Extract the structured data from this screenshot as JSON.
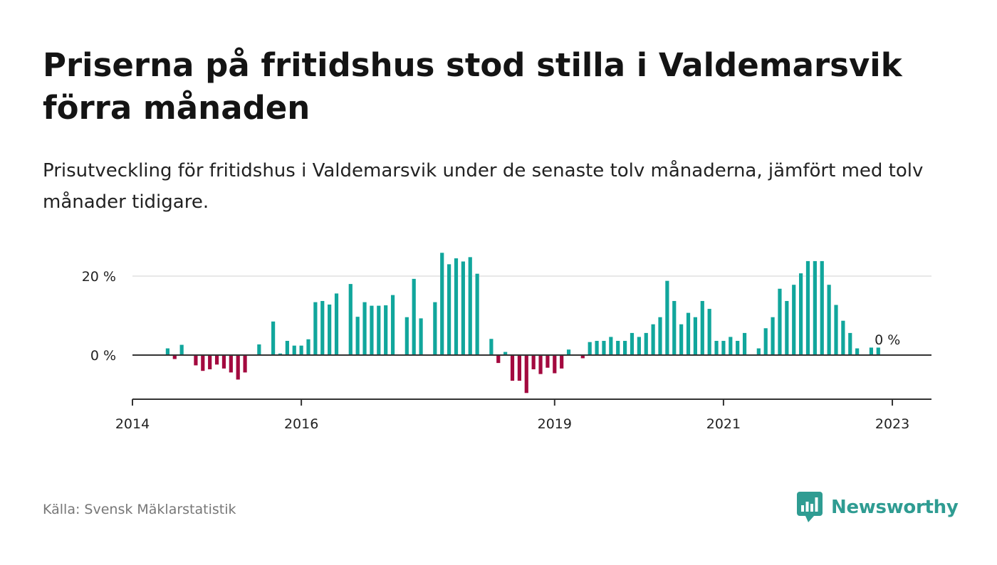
{
  "header": {
    "title": "Priserna på fritidshus stod stilla i Valdemarsvik förra månaden",
    "subtitle": "Prisutveckling för fritidshus i Valdemarsvik under de senaste tolv månaderna, jämfört med tolv månader tidigare."
  },
  "footer": {
    "source": "Källa: Svensk Mäklarstatistik",
    "brand": "Newsworthy"
  },
  "colors": {
    "positive": "#11a69c",
    "negative": "#a3093f",
    "brand": "#2f9c92"
  },
  "chart_data": {
    "type": "bar",
    "unit": "%",
    "ylim": [
      -11.5,
      28
    ],
    "y_ticks": [
      {
        "value": 0,
        "label": "0 %"
      },
      {
        "value": 20,
        "label": "20 %"
      }
    ],
    "grid": true,
    "x_ticks": [
      {
        "value": "2014-01",
        "label": "2014"
      },
      {
        "value": "2016-01",
        "label": "2016"
      },
      {
        "value": "2019-01",
        "label": "2019"
      },
      {
        "value": "2021-01",
        "label": "2021"
      },
      {
        "value": "2023-01",
        "label": "2023"
      }
    ],
    "x_range": [
      "2014-01",
      "2023-06"
    ],
    "last_label": "0 %",
    "series": [
      {
        "points": [
          {
            "x": "2014-06",
            "y": 1.7
          },
          {
            "x": "2014-07",
            "y": -1.0
          },
          {
            "x": "2014-08",
            "y": 2.6
          },
          {
            "x": "2014-10",
            "y": -2.6
          },
          {
            "x": "2014-11",
            "y": -4.0
          },
          {
            "x": "2014-12",
            "y": -3.6
          },
          {
            "x": "2015-01",
            "y": -2.4
          },
          {
            "x": "2015-02",
            "y": -3.4
          },
          {
            "x": "2015-03",
            "y": -4.4
          },
          {
            "x": "2015-04",
            "y": -6.2
          },
          {
            "x": "2015-05",
            "y": -4.4
          },
          {
            "x": "2015-07",
            "y": 2.7
          },
          {
            "x": "2015-09",
            "y": 8.5
          },
          {
            "x": "2015-10",
            "y": 0.4
          },
          {
            "x": "2015-11",
            "y": 3.6
          },
          {
            "x": "2015-12",
            "y": 2.4
          },
          {
            "x": "2016-01",
            "y": 2.4
          },
          {
            "x": "2016-02",
            "y": 4.0
          },
          {
            "x": "2016-03",
            "y": 13.4
          },
          {
            "x": "2016-04",
            "y": 13.7
          },
          {
            "x": "2016-05",
            "y": 12.8
          },
          {
            "x": "2016-06",
            "y": 15.6
          },
          {
            "x": "2016-08",
            "y": 18.0
          },
          {
            "x": "2016-09",
            "y": 9.7
          },
          {
            "x": "2016-10",
            "y": 13.4
          },
          {
            "x": "2016-11",
            "y": 12.5
          },
          {
            "x": "2016-12",
            "y": 12.5
          },
          {
            "x": "2017-01",
            "y": 12.6
          },
          {
            "x": "2017-02",
            "y": 15.2
          },
          {
            "x": "2017-04",
            "y": 9.6
          },
          {
            "x": "2017-05",
            "y": 19.3
          },
          {
            "x": "2017-06",
            "y": 9.3
          },
          {
            "x": "2017-08",
            "y": 13.4
          },
          {
            "x": "2017-09",
            "y": 25.9
          },
          {
            "x": "2017-10",
            "y": 23.0
          },
          {
            "x": "2017-11",
            "y": 24.5
          },
          {
            "x": "2017-12",
            "y": 23.7
          },
          {
            "x": "2018-01",
            "y": 24.8
          },
          {
            "x": "2018-02",
            "y": 20.6
          },
          {
            "x": "2018-04",
            "y": 4.1
          },
          {
            "x": "2018-05",
            "y": -2.0
          },
          {
            "x": "2018-06",
            "y": 0.8
          },
          {
            "x": "2018-07",
            "y": -6.5
          },
          {
            "x": "2018-08",
            "y": -6.5
          },
          {
            "x": "2018-09",
            "y": -9.6
          },
          {
            "x": "2018-10",
            "y": -3.6
          },
          {
            "x": "2018-11",
            "y": -4.8
          },
          {
            "x": "2018-12",
            "y": -3.2
          },
          {
            "x": "2019-01",
            "y": -4.6
          },
          {
            "x": "2019-02",
            "y": -3.4
          },
          {
            "x": "2019-03",
            "y": 1.4
          },
          {
            "x": "2019-05",
            "y": -0.8
          },
          {
            "x": "2019-06",
            "y": 3.3
          },
          {
            "x": "2019-07",
            "y": 3.6
          },
          {
            "x": "2019-08",
            "y": 3.6
          },
          {
            "x": "2019-09",
            "y": 4.6
          },
          {
            "x": "2019-10",
            "y": 3.6
          },
          {
            "x": "2019-11",
            "y": 3.6
          },
          {
            "x": "2019-12",
            "y": 5.6
          },
          {
            "x": "2020-01",
            "y": 4.6
          },
          {
            "x": "2020-02",
            "y": 5.6
          },
          {
            "x": "2020-03",
            "y": 7.8
          },
          {
            "x": "2020-04",
            "y": 9.6
          },
          {
            "x": "2020-05",
            "y": 18.8
          },
          {
            "x": "2020-06",
            "y": 13.7
          },
          {
            "x": "2020-07",
            "y": 7.8
          },
          {
            "x": "2020-08",
            "y": 10.7
          },
          {
            "x": "2020-09",
            "y": 9.6
          },
          {
            "x": "2020-10",
            "y": 13.7
          },
          {
            "x": "2020-11",
            "y": 11.7
          },
          {
            "x": "2020-12",
            "y": 3.6
          },
          {
            "x": "2021-01",
            "y": 3.6
          },
          {
            "x": "2021-02",
            "y": 4.6
          },
          {
            "x": "2021-03",
            "y": 3.6
          },
          {
            "x": "2021-04",
            "y": 5.6
          },
          {
            "x": "2021-06",
            "y": 1.7
          },
          {
            "x": "2021-07",
            "y": 6.8
          },
          {
            "x": "2021-08",
            "y": 9.6
          },
          {
            "x": "2021-09",
            "y": 16.8
          },
          {
            "x": "2021-10",
            "y": 13.7
          },
          {
            "x": "2021-11",
            "y": 17.8
          },
          {
            "x": "2021-12",
            "y": 20.7
          },
          {
            "x": "2022-01",
            "y": 23.8
          },
          {
            "x": "2022-02",
            "y": 23.8
          },
          {
            "x": "2022-03",
            "y": 23.8
          },
          {
            "x": "2022-04",
            "y": 17.8
          },
          {
            "x": "2022-05",
            "y": 12.7
          },
          {
            "x": "2022-06",
            "y": 8.7
          },
          {
            "x": "2022-07",
            "y": 5.6
          },
          {
            "x": "2022-08",
            "y": 1.7
          },
          {
            "x": "2022-10",
            "y": 1.9
          },
          {
            "x": "2022-11",
            "y": 1.9
          }
        ]
      }
    ]
  }
}
